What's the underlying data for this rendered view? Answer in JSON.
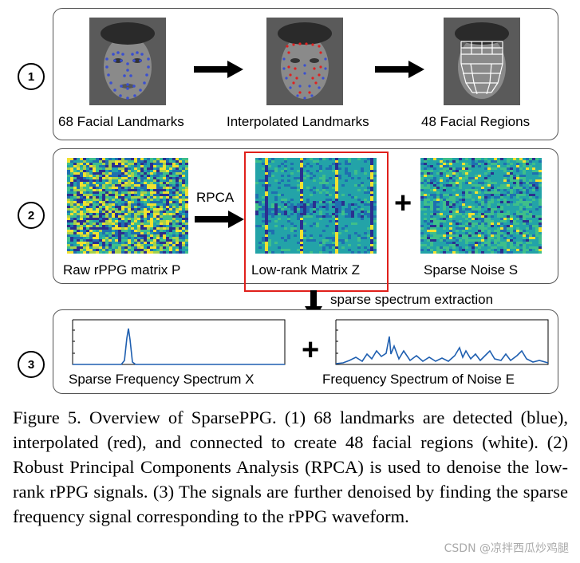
{
  "row1": {
    "step": "1",
    "labels": [
      "68 Facial Landmarks",
      "Interpolated Landmarks",
      "48 Facial Regions"
    ]
  },
  "row2": {
    "step": "2",
    "labels": [
      "Raw rPPG matrix P",
      "Low-rank Matrix Z",
      "Sparse Noise S"
    ],
    "operator_label": "RPCA",
    "plus": "+"
  },
  "arrow_label": "sparse spectrum extraction",
  "row3": {
    "step": "3",
    "labels": [
      "Sparse Frequency Spectrum X",
      "Frequency Spectrum of Noise E"
    ],
    "plus": "+"
  },
  "caption": {
    "text": "Figure 5. Overview of SparsePPG. (1) 68 landmarks are detected (blue), interpolated (red), and connected to create 48 facial regions (white).  (2) Robust Principal Components Analysis (RPCA) is used to denoise the low-rank rPPG signals. (3) The signals are further denoised by finding the sparse frequency signal corresponding to the rPPG waveform."
  },
  "watermark": "CSDN @凉拌西瓜炒鸡腿",
  "colors": {
    "landmark_blue": "#3a4fd0",
    "landmark_red": "#e02020",
    "highlight": "#e0201b",
    "spectrum_line": "#1f5fb0"
  }
}
